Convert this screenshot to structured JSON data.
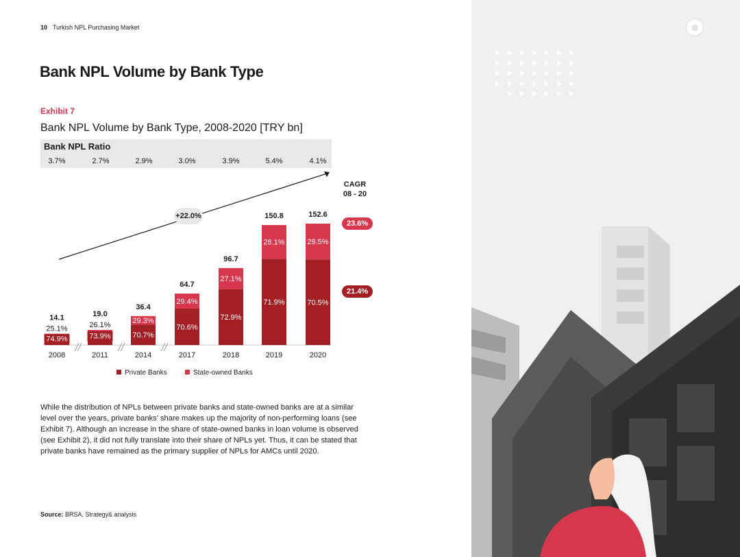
{
  "header": {
    "page_number": "10",
    "running_title": "Turkish NPL Purchasing Market"
  },
  "page_title": "Bank NPL Volume by Bank Type",
  "exhibit_label": "Exhibit 7",
  "chart_data": {
    "type": "bar",
    "stacked": true,
    "title": "Bank NPL Volume by Bank Type, 2008-2020 [TRY bn]",
    "categories": [
      "2008",
      "2011",
      "2014",
      "2017",
      "2018",
      "2019",
      "2020"
    ],
    "totals": [
      14.1,
      19.0,
      36.4,
      64.7,
      96.7,
      150.8,
      152.6
    ],
    "total_labels": [
      "14.1",
      "19.0",
      "36.4",
      "64.7",
      "96.7",
      "150.8",
      "152.6"
    ],
    "series": [
      {
        "name": "Private Banks",
        "color": "#a41f24",
        "share_pct": [
          74.9,
          73.9,
          70.7,
          70.6,
          72.9,
          71.9,
          70.5
        ],
        "labels": [
          "74.9%",
          "73.9%",
          "70.7%",
          "70.6%",
          "72.9%",
          "71.9%",
          "70.5%"
        ]
      },
      {
        "name": "State-owned Banks",
        "color": "#d8364d",
        "share_pct": [
          25.1,
          26.1,
          29.3,
          29.4,
          27.1,
          28.1,
          29.5
        ],
        "labels": [
          "25.1%",
          "26.1%",
          "29.3%",
          "29.4%",
          "27.1%",
          "28.1%",
          "29.5%"
        ]
      }
    ],
    "ylim": [
      0,
      160
    ],
    "axis_breaks_after": [
      "2008",
      "2011",
      "2014"
    ],
    "ratio_band": {
      "title": "Bank NPL Ratio",
      "values": [
        "3.7%",
        "2.7%",
        "2.9%",
        "3.0%",
        "3.9%",
        "5.4%",
        "4.1%"
      ]
    },
    "overall_growth_label": "+22.0%",
    "cagr": {
      "title_line1": "CAGR",
      "title_line2": "08 - 20",
      "state_owned": "23.6%",
      "private": "21.4%"
    },
    "legend_placement": "bottom"
  },
  "body_text": "While the distribution of NPLs between private banks and state-owned banks are at a similar level over the years, private banks’ share makes up the majority of non-performing loans (see Exhibit 7). Although an increase in the share of state-owned banks in loan volume is observed (see Exhibit 2), it did not fully translate into their share of NPLs yet. Thus, it can be stated that private banks have remained as the primary supplier of NPLs for AMCs until 2020.",
  "source": {
    "label": "Source:",
    "text": "BRSA, Strategy& analysis"
  },
  "icons": {
    "home": "home-icon",
    "decor_arrows": "triangle-pattern",
    "illustration": "buildings-woman-illustration"
  },
  "colors": {
    "accent": "#d0314b",
    "private": "#a41f24",
    "state": "#d8364d",
    "panel_bg": "#f0f0f0"
  }
}
